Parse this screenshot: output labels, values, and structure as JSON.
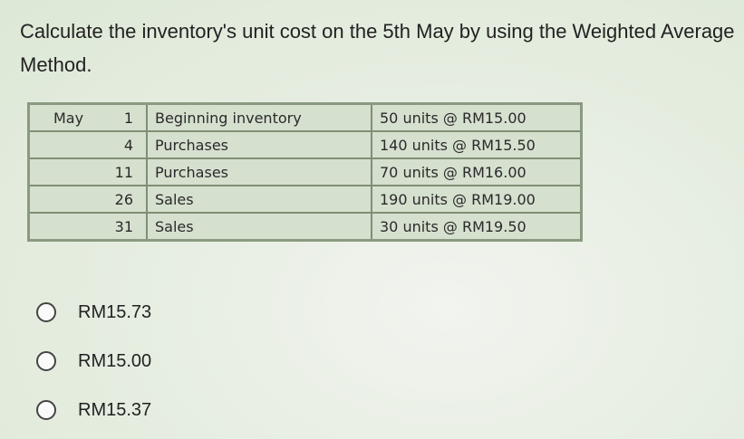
{
  "question": "Calculate the inventory's unit cost on the 5th May by using the Weighted Average Method.",
  "table": {
    "rows": [
      {
        "month": "May",
        "day": "1",
        "description": "Beginning inventory",
        "detail": "50 units @ RM15.00"
      },
      {
        "month": "",
        "day": "4",
        "description": "Purchases",
        "detail": "140 units @ RM15.50"
      },
      {
        "month": "",
        "day": "11",
        "description": "Purchases",
        "detail": "70 units @ RM16.00"
      },
      {
        "month": "",
        "day": "26",
        "description": "Sales",
        "detail": "190 units @ RM19.00"
      },
      {
        "month": "",
        "day": "31",
        "description": "Sales",
        "detail": "30 units @ RM19.50"
      }
    ]
  },
  "options": [
    {
      "label": "RM15.73",
      "selected": false
    },
    {
      "label": "RM15.00",
      "selected": false
    },
    {
      "label": "RM15.37",
      "selected": false
    }
  ]
}
